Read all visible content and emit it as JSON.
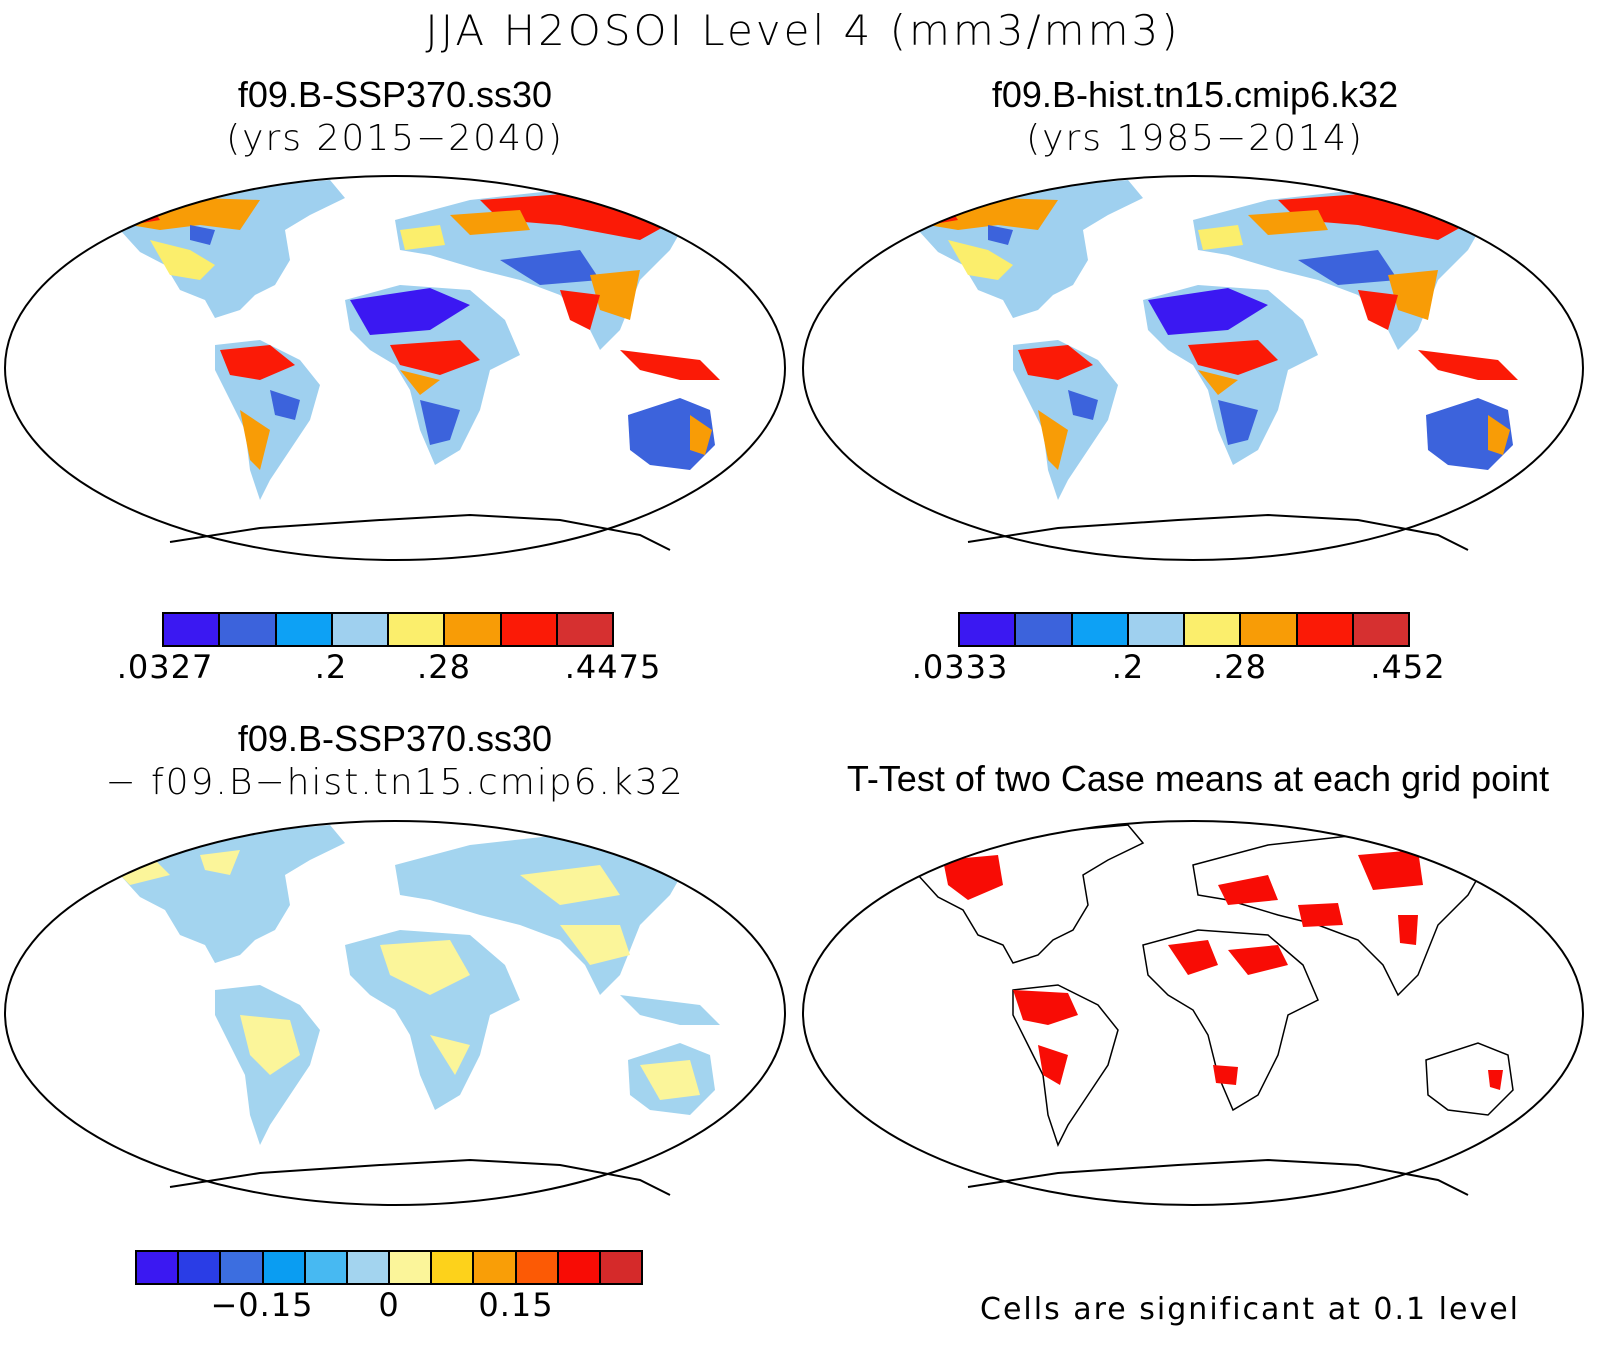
{
  "title": "JJA H2OSOI Level 4 (mm3/mm3)",
  "panels": {
    "top_left": {
      "title": "f09.B-SSP370.ss30",
      "subtitle": "(yrs 2015−2040)"
    },
    "top_right": {
      "title": "f09.B-hist.tn15.cmip6.k32",
      "subtitle": "(yrs 1985−2014)"
    },
    "bottom_left": {
      "title": "f09.B-SSP370.ss30",
      "subtitle": "− f09.B−hist.tn15.cmip6.k32"
    },
    "bottom_right": {
      "title": "T-Test of two Case means at each grid point",
      "note": "Cells are significant at 0.1 level"
    }
  },
  "colorbars": {
    "top_left": {
      "colors": [
        "#3b18f2",
        "#3c63dc",
        "#0da1f5",
        "#9fd0ef",
        "#fbee6c",
        "#f89c06",
        "#fb1a06",
        "#d63030"
      ],
      "ticks": [
        ".0327",
        ".2",
        ".28",
        ".4475"
      ]
    },
    "top_right": {
      "colors": [
        "#3b18f2",
        "#3c63dc",
        "#0da1f5",
        "#9fd0ef",
        "#fbee6c",
        "#f89c06",
        "#fb1a06",
        "#d63030"
      ],
      "ticks": [
        ".0333",
        ".2",
        ".28",
        ".452"
      ]
    },
    "bottom_left": {
      "colors": [
        "#3b18f2",
        "#2a3de6",
        "#3c6ee0",
        "#0a9df2",
        "#47b9f2",
        "#a3d4ef",
        "#fbf59a",
        "#fdd21b",
        "#f99e07",
        "#fc5a05",
        "#f80c05",
        "#d52a2a"
      ],
      "ticks": [
        "−0.15",
        "0",
        "0.15"
      ]
    }
  }
}
